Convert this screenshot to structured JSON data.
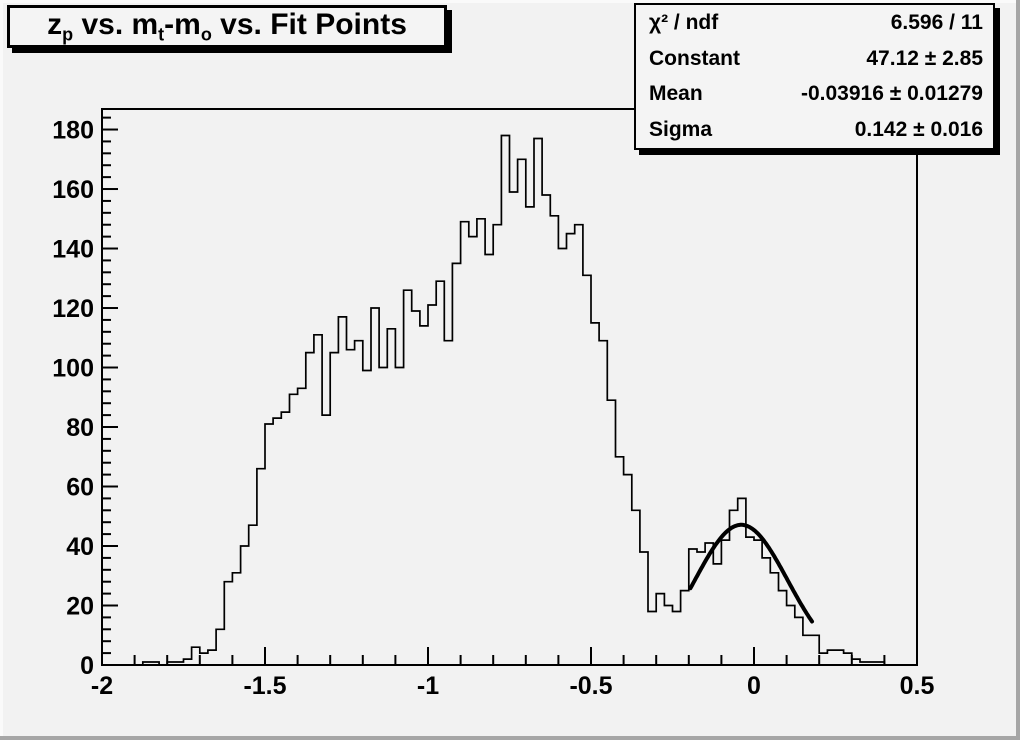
{
  "title": {
    "plain": "z_p vs. m_t-m_o vs. Fit Points",
    "segments": [
      {
        "text": "z"
      },
      {
        "text": "p",
        "sub": true
      },
      {
        "text": " vs. m"
      },
      {
        "text": "t",
        "sub": true
      },
      {
        "text": "-m"
      },
      {
        "text": "o",
        "sub": true
      },
      {
        "text": " vs. Fit Points"
      }
    ]
  },
  "stats": {
    "rows": [
      {
        "label": "χ² / ndf",
        "value": "6.596 / 11"
      },
      {
        "label": "Constant",
        "value": "47.12 ± 2.85"
      },
      {
        "label": "Mean",
        "value": "-0.03916 ± 0.01279"
      },
      {
        "label": "Sigma",
        "value": "0.142 ± 0.016"
      }
    ]
  },
  "chart_data": {
    "type": "bar",
    "subtype": "step-histogram",
    "title": "z_p vs. m_t-m_o vs. Fit Points",
    "xlabel": "",
    "ylabel": "",
    "xlim": [
      -2,
      0.5
    ],
    "ylim": [
      0,
      186.9
    ],
    "grid": false,
    "x_start": -2,
    "bin_width": 0.025,
    "n_bins": 100,
    "counts": [
      0,
      0,
      0,
      0,
      0,
      1,
      1,
      0,
      1,
      1,
      2,
      6,
      4,
      5,
      12,
      28,
      31,
      40,
      47,
      66,
      81,
      83,
      85,
      91,
      93,
      105,
      111,
      84,
      105,
      117,
      106,
      109,
      99,
      120,
      100,
      113,
      100,
      126,
      119,
      114,
      121,
      129,
      109,
      135,
      149,
      144,
      150,
      138,
      148,
      178,
      159,
      170,
      154,
      177,
      158,
      151,
      140,
      145,
      148,
      131,
      115,
      109,
      89,
      70,
      64,
      52,
      38,
      18,
      24,
      20,
      18,
      25,
      39,
      38,
      41,
      34,
      42,
      52,
      56,
      43,
      42,
      36,
      31,
      25,
      20,
      16,
      10,
      10,
      4,
      5,
      5,
      4,
      2,
      1,
      1,
      1,
      0,
      0,
      0,
      0
    ],
    "x_major_ticks": [
      -2,
      -1.5,
      -1,
      -0.5,
      0,
      0.5
    ],
    "x_tick_labels": [
      "-2",
      "-1.5",
      "-1",
      "-0.5",
      "0",
      "0.5"
    ],
    "x_minor_step": 0.1,
    "y_major_ticks": [
      0,
      20,
      40,
      60,
      80,
      100,
      120,
      140,
      160,
      180
    ],
    "y_tick_labels": [
      "0",
      "20",
      "40",
      "60",
      "80",
      "100",
      "120",
      "140",
      "160",
      "180"
    ],
    "y_minor_step": 4,
    "fit": {
      "shape": "gaussian",
      "constant": 47.12,
      "mean": -0.03916,
      "sigma": 0.142,
      "draw_range": [
        -0.195,
        0.178
      ]
    },
    "colors": {
      "line": "#000000",
      "fit_line": "#000000",
      "background": "#f2f2f2",
      "frame": "#000000"
    },
    "legend": null
  }
}
